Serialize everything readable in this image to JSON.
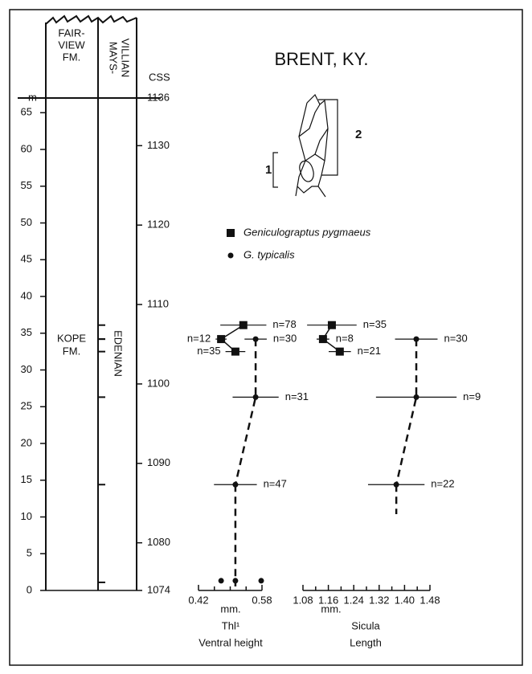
{
  "chart_data": {
    "type": "stratigraphic",
    "title": "BRENT, KY.",
    "meter_axis": {
      "label": "m",
      "ylim": [
        0,
        67
      ],
      "yticks": [
        0,
        5,
        10,
        15,
        20,
        25,
        30,
        35,
        40,
        45,
        50,
        55,
        60,
        65
      ]
    },
    "css_axis": {
      "label": "CSS",
      "ylim": [
        1074,
        1136
      ],
      "yticks": [
        1074,
        1080,
        1090,
        1100,
        1110,
        1120,
        1130,
        1136
      ]
    },
    "units": {
      "upper_formation": [
        "FAIR-",
        "VIEW",
        "FM."
      ],
      "upper_stage": [
        "MAYS-",
        "VILLIAN"
      ],
      "lower_formation": [
        "KOPE",
        "FM."
      ],
      "lower_stage": "EDENIAN"
    },
    "diagram_labels": [
      "1",
      "2"
    ],
    "panels": [
      {
        "xlabel": [
          "mm.",
          "Thl¹",
          "Ventral height"
        ],
        "xlim": [
          0.42,
          0.58
        ],
        "xticks": [
          0.42,
          0.58
        ],
        "minor_xticks": [
          0.46,
          0.5,
          0.54
        ],
        "base_points": {
          "values": [
            0.477,
            0.513,
            0.578
          ],
          "y": [
            1.1,
            1.1,
            1.1
          ]
        }
      },
      {
        "xlabel": [
          "mm.",
          "Sicula",
          "Length"
        ],
        "xlim": [
          1.08,
          1.48
        ],
        "xticks": [
          1.08,
          1.16,
          1.24,
          1.32,
          {
            "value": 1.4,
            "label": "1.40"
          },
          1.48
        ],
        "minor_xticks": [
          1.12,
          1.2,
          1.28,
          1.36,
          1.44
        ]
      }
    ],
    "series": [
      {
        "name": "Geniculograptus pygmaeus",
        "marker": "square",
        "y": [
          36.1,
          34.2,
          32.5
        ],
        "panels": [
          {
            "values": [
              0.533,
              0.477,
              0.513
            ],
            "errors": [
              0.058,
              0.014,
              0.025
            ],
            "value_labels": [
              "n=78",
              "n=12",
              "n=35"
            ]
          },
          {
            "values": [
              1.171,
              1.143,
              1.196
            ],
            "errors": [
              0.078,
              0.02,
              0.035
            ],
            "value_labels": [
              "n=35",
              "n=8",
              "n=21"
            ]
          }
        ]
      },
      {
        "name": "G. typicalis",
        "marker": "circle",
        "y": [
          34.2,
          26.3,
          14.4
        ],
        "panels": [
          {
            "values": [
              0.564,
              0.564,
              0.513
            ],
            "errors": [
              0.028,
              0.058,
              0.054
            ],
            "value_labels": [
              "n=30",
              "n=31",
              "n=47"
            ]
          },
          {
            "values": [
              1.437,
              1.437,
              1.374
            ],
            "errors": [
              0.067,
              0.127,
              0.089
            ],
            "value_labels": [
              "n=30",
              "n=9",
              "n=22"
            ]
          }
        ]
      }
    ]
  }
}
